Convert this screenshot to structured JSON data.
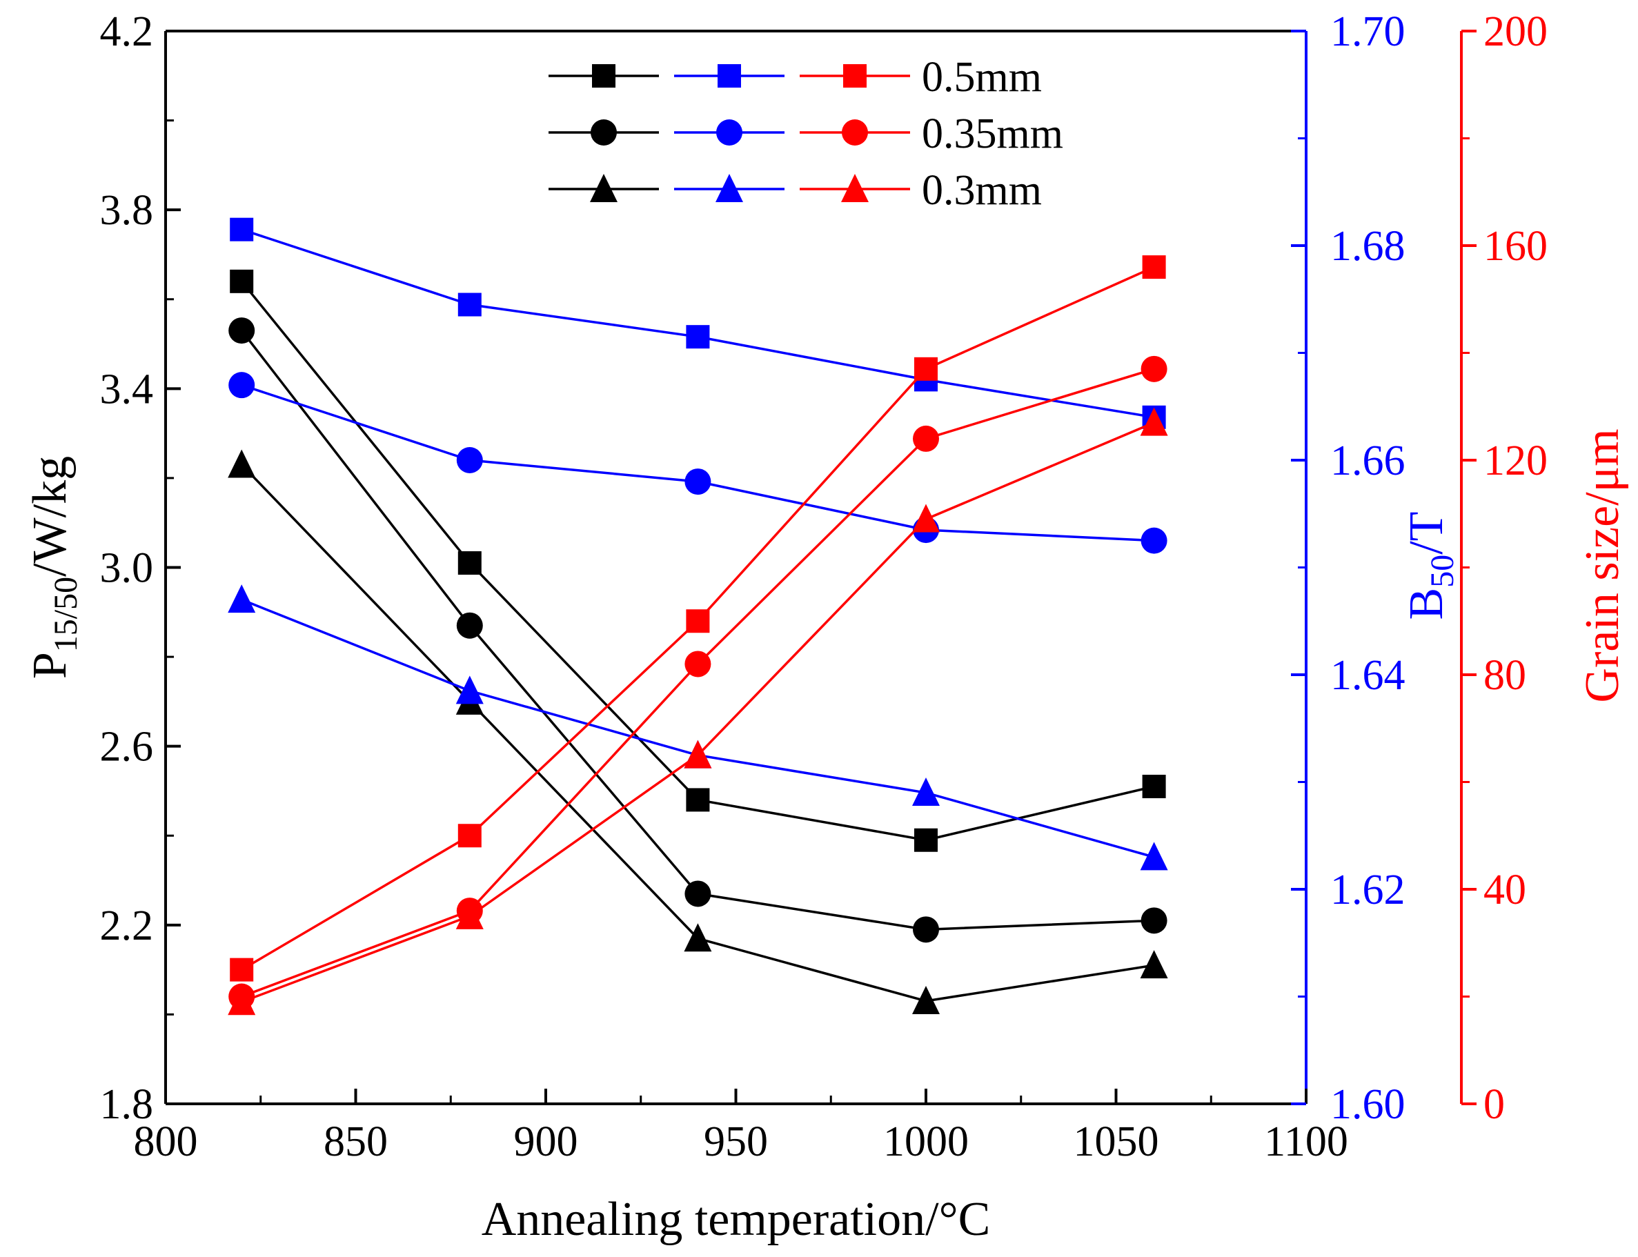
{
  "chart_data": {
    "type": "line",
    "title": "",
    "xlabel": "Annealing temperation/°C",
    "ylabel_left": {
      "main": "P",
      "sub": "15/50",
      "rest": "/W/kg"
    },
    "ylabel_mid": {
      "main": "B",
      "sub": "50",
      "rest": "/T"
    },
    "ylabel_right": "Grain size/μm",
    "xlim": [
      800,
      1100
    ],
    "ylim_left": [
      1.8,
      4.2
    ],
    "ylim_mid": [
      1.6,
      1.7
    ],
    "ylim_right": [
      0,
      200
    ],
    "xticks": [
      800,
      850,
      900,
      950,
      1000,
      1050,
      1100
    ],
    "xtick_labels": [
      "800",
      "850",
      "900",
      "950",
      "1000",
      "1050",
      "1100"
    ],
    "yticks_left": [
      1.8,
      2.2,
      2.6,
      3.0,
      3.4,
      3.8,
      4.2
    ],
    "ytick_labels_left": [
      "1.8",
      "2.2",
      "2.6",
      "3.0",
      "3.4",
      "3.8",
      "4.2"
    ],
    "yticks_mid": [
      1.6,
      1.62,
      1.64,
      1.66,
      1.68,
      1.7
    ],
    "ytick_labels_mid": [
      "1.60",
      "1.62",
      "1.64",
      "1.66",
      "1.68",
      "1.70"
    ],
    "yticks_right": [
      0,
      40,
      80,
      120,
      160,
      200
    ],
    "ytick_labels_right": [
      "0",
      "40",
      "80",
      "120",
      "160",
      "200"
    ],
    "x": [
      820,
      880,
      940,
      1000,
      1060
    ],
    "series": [
      {
        "name": "P15/50 0.5mm",
        "axis": "left",
        "color": "#000000",
        "marker": "square",
        "values": [
          3.64,
          3.01,
          2.48,
          2.39,
          2.51
        ]
      },
      {
        "name": "P15/50 0.35mm",
        "axis": "left",
        "color": "#000000",
        "marker": "circle",
        "values": [
          3.53,
          2.87,
          2.27,
          2.19,
          2.21
        ]
      },
      {
        "name": "P15/50 0.3mm",
        "axis": "left",
        "color": "#000000",
        "marker": "triangle",
        "values": [
          3.23,
          2.7,
          2.17,
          2.03,
          2.11
        ]
      },
      {
        "name": "B50 0.5mm",
        "axis": "mid",
        "color": "#0000ff",
        "marker": "square",
        "values": [
          1.6815,
          1.6745,
          1.6715,
          1.6675,
          1.664
        ]
      },
      {
        "name": "B50 0.35mm",
        "axis": "mid",
        "color": "#0000ff",
        "marker": "circle",
        "values": [
          1.667,
          1.66,
          1.658,
          1.6535,
          1.6525
        ]
      },
      {
        "name": "B50 0.3mm",
        "axis": "mid",
        "color": "#0000ff",
        "marker": "triangle",
        "values": [
          1.647,
          1.6385,
          1.6325,
          1.629,
          1.623
        ]
      },
      {
        "name": "Grain size 0.5mm",
        "axis": "right",
        "color": "#ff0000",
        "marker": "square",
        "values": [
          25,
          50,
          90,
          137,
          156
        ]
      },
      {
        "name": "Grain size 0.35mm",
        "axis": "right",
        "color": "#ff0000",
        "marker": "circle",
        "values": [
          20,
          36,
          82,
          124,
          137
        ]
      },
      {
        "name": "Grain size 0.3mm",
        "axis": "right",
        "color": "#ff0000",
        "marker": "triangle",
        "values": [
          19,
          35,
          65,
          109,
          127
        ]
      }
    ],
    "legend": {
      "position": "top-center",
      "entries": [
        {
          "label": "0.5mm",
          "marker": "square"
        },
        {
          "label": "0.35mm",
          "marker": "circle"
        },
        {
          "label": "0.3mm",
          "marker": "triangle"
        }
      ],
      "colors": [
        "#000000",
        "#0000ff",
        "#ff0000"
      ]
    },
    "axis_colors": {
      "left": "#000000",
      "mid": "#0000ff",
      "right": "#ff0000"
    }
  }
}
